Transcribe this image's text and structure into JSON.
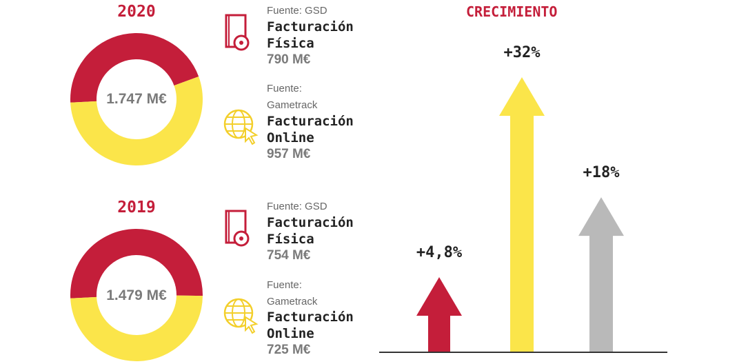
{
  "colors": {
    "physical": "#c41e3a",
    "online": "#fbe54a",
    "third": "#b9b9b9",
    "title": "#c41e3a"
  },
  "chart_data": [
    {
      "type": "pie",
      "title": "2020",
      "total_label": "1.747 M€",
      "categories": [
        "Facturación Física",
        "Facturación Online"
      ],
      "values": [
        790,
        957
      ],
      "unit": "M€"
    },
    {
      "type": "pie",
      "title": "2019",
      "total_label": "1.479 M€",
      "categories": [
        "Facturación Física",
        "Facturación Online"
      ],
      "values": [
        754,
        725
      ],
      "unit": "M€"
    },
    {
      "type": "bar",
      "title": "CRECIMIENTO",
      "categories": [
        "red",
        "yellow",
        "gray"
      ],
      "values": [
        4.8,
        32,
        18
      ],
      "labels": [
        "+4,8%",
        "+32%",
        "+18%"
      ],
      "unit": "%"
    }
  ],
  "legend": {
    "y2020": [
      {
        "source": "Fuente: GSD",
        "metric_line1": "Facturación",
        "metric_line2": "Física",
        "amount": "790 M€",
        "icon": "book-disc-icon"
      },
      {
        "source_line1": "Fuente:",
        "source_line2": "Gametrack",
        "metric_line1": "Facturación",
        "metric_line2": "Online",
        "amount": "957 M€",
        "icon": "globe-cursor-icon"
      }
    ],
    "y2019": [
      {
        "source": "Fuente: GSD",
        "metric_line1": "Facturación",
        "metric_line2": "Física",
        "amount": "754 M€",
        "icon": "book-disc-icon"
      },
      {
        "source_line1": "Fuente:",
        "source_line2": "Gametrack",
        "metric_line1": "Facturación",
        "metric_line2": "Online",
        "amount": "725 M€",
        "icon": "globe-cursor-icon"
      }
    ]
  }
}
